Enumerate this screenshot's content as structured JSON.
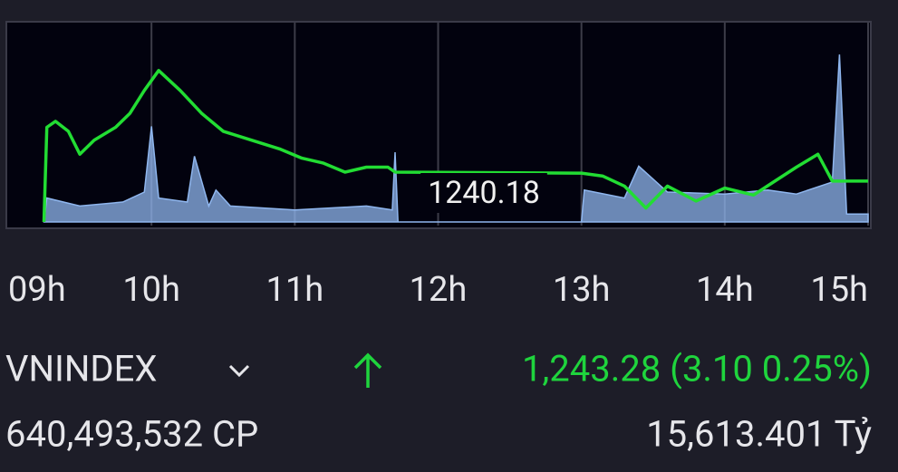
{
  "chart_data": {
    "type": "line",
    "xlim": [
      9,
      15
    ],
    "xticks": [
      {
        "value": 9,
        "label": "09h"
      },
      {
        "value": 10,
        "label": "10h"
      },
      {
        "value": 11,
        "label": "11h"
      },
      {
        "value": 12,
        "label": "12h"
      },
      {
        "value": 13,
        "label": "13h"
      },
      {
        "value": 14,
        "label": "14h"
      },
      {
        "value": 15,
        "label": "15h"
      }
    ],
    "ylim": [
      1239.2,
      1259.2
    ],
    "y2lim": [
      0,
      100
    ],
    "reference_value": 1240.18,
    "series": [
      {
        "color": "#8fb6ee",
        "axis": "y2",
        "x": [
          9.25,
          9.27,
          9.5,
          9.8,
          9.95,
          10.0,
          10.05,
          10.25,
          10.3,
          10.4,
          10.45,
          10.55,
          11.0,
          11.5,
          11.68,
          11.7,
          11.72,
          13.0,
          13.02,
          13.3,
          13.4,
          13.6,
          14.0,
          14.3,
          14.5,
          14.75,
          14.8,
          14.85,
          15.0
        ],
        "values": [
          0,
          12,
          8,
          10,
          15,
          48,
          12,
          10,
          33,
          8,
          16,
          8,
          6,
          8,
          6,
          35,
          0,
          0,
          16,
          12,
          28,
          15,
          14,
          16,
          14,
          20,
          84,
          4,
          4
        ]
      },
      {
        "color": "#22dd33",
        "x": [
          9.25,
          9.27,
          9.33,
          9.42,
          9.5,
          9.6,
          9.75,
          9.85,
          9.95,
          10.05,
          10.2,
          10.35,
          10.5,
          10.7,
          10.9,
          11.05,
          11.2,
          11.35,
          11.5,
          11.65,
          11.7,
          13.0,
          13.15,
          13.3,
          13.45,
          13.6,
          13.8,
          14.0,
          14.2,
          14.35,
          14.5,
          14.65,
          14.75,
          15.0
        ],
        "values": [
          1239.2,
          1248.7,
          1249.3,
          1248.3,
          1246.0,
          1247.4,
          1248.7,
          1250.1,
          1252.4,
          1254.4,
          1252.4,
          1250.1,
          1248.3,
          1247.4,
          1246.5,
          1245.6,
          1245.1,
          1244.2,
          1244.7,
          1244.7,
          1244.2,
          1244.1,
          1243.8,
          1242.8,
          1240.6,
          1242.8,
          1241.3,
          1242.6,
          1241.9,
          1243.3,
          1244.7,
          1246.0,
          1243.3,
          1243.3
        ]
      }
    ]
  },
  "index": {
    "name": "VNINDEX",
    "change": "1,243.28 (3.10 0.25%)",
    "volume": "640,493,532 CP",
    "value": "15,613.401 Tỷ"
  }
}
